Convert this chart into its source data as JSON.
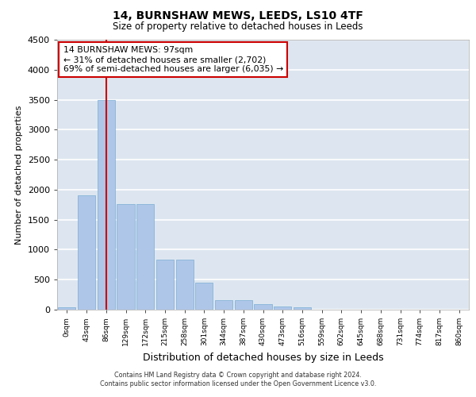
{
  "title": "14, BURNSHAW MEWS, LEEDS, LS10 4TF",
  "subtitle": "Size of property relative to detached houses in Leeds",
  "xlabel": "Distribution of detached houses by size in Leeds",
  "ylabel": "Number of detached properties",
  "categories": [
    "0sqm",
    "43sqm",
    "86sqm",
    "129sqm",
    "172sqm",
    "215sqm",
    "258sqm",
    "301sqm",
    "344sqm",
    "387sqm",
    "430sqm",
    "473sqm",
    "516sqm",
    "559sqm",
    "602sqm",
    "645sqm",
    "688sqm",
    "731sqm",
    "774sqm",
    "817sqm",
    "860sqm"
  ],
  "values": [
    35,
    1900,
    3500,
    1760,
    1760,
    840,
    840,
    450,
    155,
    155,
    90,
    55,
    35,
    0,
    0,
    0,
    0,
    0,
    0,
    0,
    0
  ],
  "bar_color": "#aec6e8",
  "bar_edge_color": "#7aadd4",
  "vline_x_index": 2,
  "vline_color": "#cc0000",
  "annotation_text": "14 BURNSHAW MEWS: 97sqm\n← 31% of detached houses are smaller (2,702)\n69% of semi-detached houses are larger (6,035) →",
  "annotation_box_color": "#ffffff",
  "annotation_box_edge": "#cc0000",
  "ylim": [
    0,
    4500
  ],
  "yticks": [
    0,
    500,
    1000,
    1500,
    2000,
    2500,
    3000,
    3500,
    4000,
    4500
  ],
  "bg_color": "#dde6f0",
  "grid_color": "#ffffff",
  "footer_line1": "Contains HM Land Registry data © Crown copyright and database right 2024.",
  "footer_line2": "Contains public sector information licensed under the Open Government Licence v3.0."
}
